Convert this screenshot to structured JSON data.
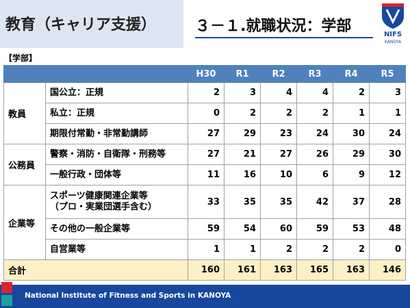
{
  "header": {
    "title": "教育（キャリア支援）",
    "subtitle": "３－１.就職状況：学部",
    "logo": {
      "name": "NIFS",
      "place": "KANOYA"
    }
  },
  "section_label": "【学部】",
  "table": {
    "columns": [
      "H30",
      "R1",
      "R2",
      "R3",
      "R4",
      "R5"
    ],
    "groups": [
      {
        "label": "教員",
        "rows": [
          {
            "label": "国公立：正規",
            "values": [
              2,
              3,
              4,
              4,
              2,
              3
            ]
          },
          {
            "label": "私立：正規",
            "values": [
              0,
              2,
              2,
              2,
              1,
              1
            ]
          },
          {
            "label": "期限付常勤・非常勤講師",
            "values": [
              27,
              29,
              23,
              24,
              30,
              24
            ]
          }
        ]
      },
      {
        "label": "公務員",
        "rows": [
          {
            "label": "警察・消防・自衛隊・刑務等",
            "values": [
              27,
              21,
              27,
              26,
              29,
              30
            ]
          },
          {
            "label": "一般行政・団体等",
            "values": [
              11,
              16,
              10,
              6,
              9,
              12
            ]
          }
        ]
      },
      {
        "label": "企業等",
        "rows": [
          {
            "label": "スポーツ健康関連企業等\n（プロ・実業団選手含む）",
            "values": [
              33,
              35,
              35,
              42,
              37,
              28
            ]
          },
          {
            "label": "その他の一般企業等",
            "values": [
              59,
              54,
              60,
              59,
              53,
              48
            ]
          },
          {
            "label": "自営業等",
            "values": [
              1,
              1,
              2,
              2,
              2,
              0
            ]
          }
        ]
      }
    ],
    "total": {
      "label": "合計",
      "values": [
        160,
        161,
        163,
        165,
        163,
        146
      ]
    }
  },
  "footer": "National Institute of Fitness and Sports in KANOYA"
}
